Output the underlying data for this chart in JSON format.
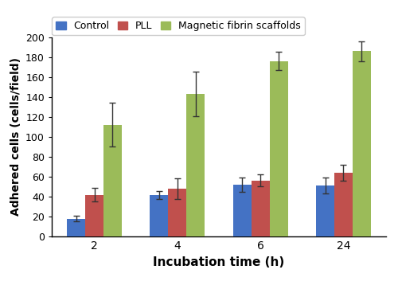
{
  "time_points": [
    "2",
    "4",
    "6",
    "24"
  ],
  "series": {
    "Control": {
      "values": [
        18,
        42,
        52,
        51
      ],
      "errors": [
        3,
        4,
        7,
        8
      ],
      "color": "#4472C4"
    },
    "PLL": {
      "values": [
        42,
        48,
        56,
        64
      ],
      "errors": [
        7,
        10,
        6,
        8
      ],
      "color": "#C0504D"
    },
    "Magnetic fibrin scaffolds": {
      "values": [
        112,
        143,
        176,
        186
      ],
      "errors": [
        22,
        22,
        9,
        10
      ],
      "color": "#9BBB59"
    }
  },
  "xlabel": "Incubation time (h)",
  "ylabel": "Adhered cells (cells/field)",
  "ylim": [
    0,
    200
  ],
  "yticks": [
    0,
    20,
    40,
    60,
    80,
    100,
    120,
    140,
    160,
    180,
    200
  ],
  "bar_width": 0.22,
  "legend_labels": [
    "Control",
    "PLL",
    "Magnetic fibrin scaffolds"
  ],
  "background_color": "#ffffff",
  "error_capsize": 3
}
